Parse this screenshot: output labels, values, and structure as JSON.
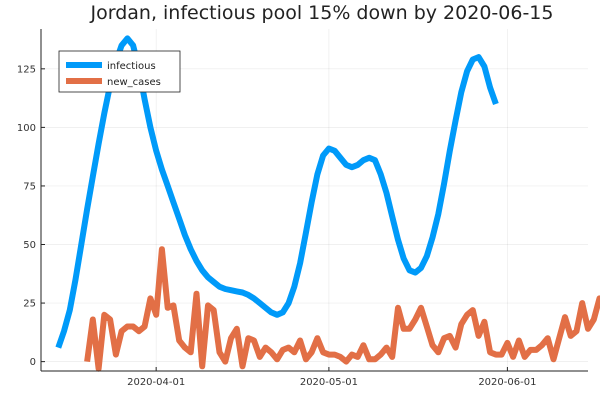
{
  "chart_data": {
    "type": "line",
    "title": "Jordan, infectious pool 15% down by 2020-06-15",
    "xlabel": "",
    "ylabel": "",
    "x_start": "2020-03-12",
    "x_ticks": [
      {
        "date": "2020-04-01",
        "label": "2020-04-01"
      },
      {
        "date": "2020-05-01",
        "label": "2020-05-01"
      },
      {
        "date": "2020-06-01",
        "label": "2020-06-01"
      }
    ],
    "y_ticks": [
      0,
      25,
      50,
      75,
      100,
      125
    ],
    "xlim": [
      "2020-03-12",
      "2020-06-15"
    ],
    "ylim": [
      -4,
      142
    ],
    "grid": true,
    "legend_position": "top-left",
    "series": [
      {
        "name": "infectious",
        "color": "#009af9",
        "start_date": "2020-03-15",
        "values": [
          6,
          13,
          22,
          35,
          50,
          65,
          79,
          93,
          106,
          118,
          128,
          135,
          138,
          135,
          125,
          112,
          100,
          90,
          82,
          75,
          68,
          61,
          54,
          48,
          43,
          39,
          36,
          34,
          32,
          31,
          30.5,
          30,
          29.5,
          28.5,
          27,
          25,
          23,
          21,
          20,
          21,
          25,
          32,
          42,
          55,
          68,
          80,
          88,
          91,
          90,
          87,
          84,
          83,
          84,
          86,
          87,
          86,
          80,
          72,
          62,
          52,
          44,
          39,
          38,
          40,
          45,
          53,
          63,
          76,
          90,
          103,
          115,
          124,
          129,
          130,
          126,
          117,
          110
        ]
      },
      {
        "name": "new_cases",
        "color": "#e26f46",
        "start_date": "2020-03-20",
        "values": [
          0,
          18,
          -3,
          20,
          18,
          3,
          13,
          15,
          15,
          13,
          15,
          27,
          20,
          48,
          23,
          24,
          9,
          6,
          4,
          29,
          -2,
          24,
          22,
          4,
          0,
          10,
          14,
          -2,
          10,
          9,
          2,
          6,
          4,
          1,
          5,
          6,
          4,
          9,
          1,
          4,
          10,
          4,
          3,
          3,
          2,
          0,
          3,
          2,
          7,
          1,
          1,
          3,
          6,
          2,
          23,
          14,
          14,
          18,
          23,
          15,
          7,
          4,
          10,
          11,
          6,
          16,
          20,
          22,
          11,
          17,
          4,
          3,
          3,
          8,
          2,
          9,
          2,
          5,
          5,
          7,
          10,
          1,
          10,
          19,
          11,
          13,
          25,
          14,
          18,
          27,
          26,
          42,
          8
        ]
      }
    ]
  }
}
